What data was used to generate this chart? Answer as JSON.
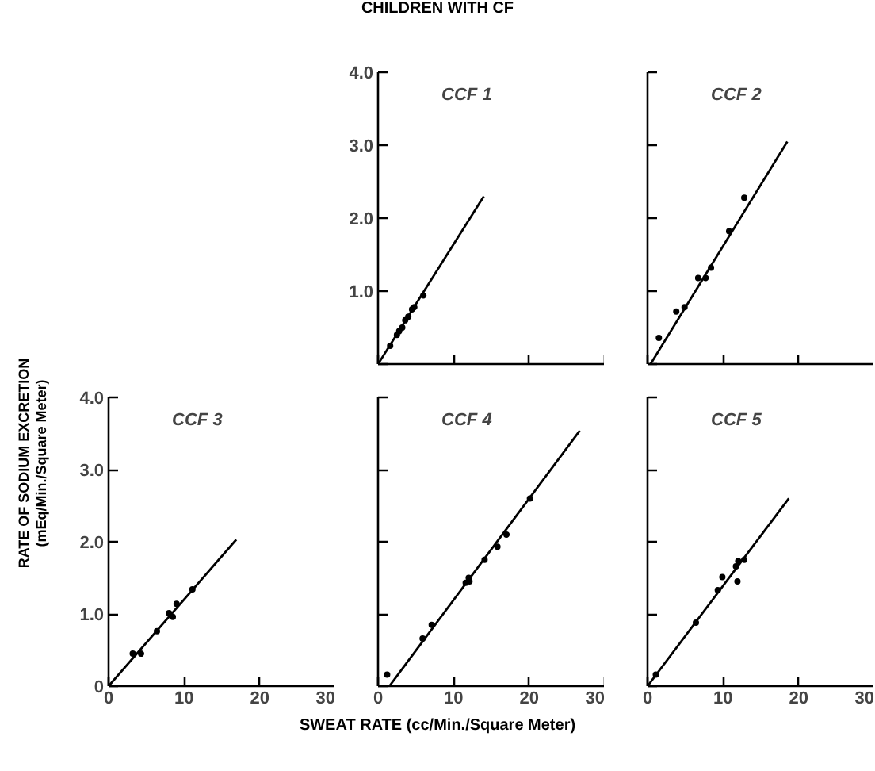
{
  "chart_data": [
    {
      "type": "scatter",
      "title": "CCF 1",
      "annotations": [
        "CHILDREN WITH CF"
      ],
      "xlim": [
        0,
        30
      ],
      "ylim": [
        0,
        4
      ],
      "tick_labels": "y",
      "xticks": [
        {
          "value": 0,
          "label": null
        },
        {
          "value": 10,
          "label": null
        },
        {
          "value": 20,
          "label": null
        },
        {
          "value": 30,
          "label": null
        }
      ],
      "yticks": [
        {
          "value": 0,
          "label": null
        },
        {
          "value": 1,
          "label": "1.0"
        },
        {
          "value": 2,
          "label": "2.0"
        },
        {
          "value": 3,
          "label": "3.0"
        },
        {
          "value": 4,
          "label": "4.0"
        }
      ],
      "series": [
        {
          "type": "scatter",
          "marker": "circle",
          "color": "#000000",
          "x": [
            1.6,
            2.5,
            2.8,
            3.2,
            3.6,
            4.0,
            4.5,
            4.8,
            6.0
          ],
          "values": [
            0.25,
            0.4,
            0.45,
            0.5,
            0.6,
            0.65,
            0.75,
            0.78,
            0.94
          ]
        },
        {
          "type": "line",
          "color": "#000000",
          "x": [
            0,
            14.0
          ],
          "values": [
            0,
            2.3
          ]
        }
      ]
    },
    {
      "type": "scatter",
      "title": "CCF 2",
      "xlim": [
        0,
        30
      ],
      "ylim": [
        0,
        4
      ],
      "tick_labels": false,
      "xticks": [
        {
          "value": 0,
          "label": null
        },
        {
          "value": 10,
          "label": null
        },
        {
          "value": 20,
          "label": null
        },
        {
          "value": 30,
          "label": null
        }
      ],
      "yticks": [
        {
          "value": 0,
          "label": null
        },
        {
          "value": 1,
          "label": null
        },
        {
          "value": 2,
          "label": null
        },
        {
          "value": 3,
          "label": null
        },
        {
          "value": 4,
          "label": null
        }
      ],
      "series": [
        {
          "type": "scatter",
          "marker": "circle",
          "color": "#000000",
          "x": [
            1.5,
            3.8,
            4.9,
            6.7,
            7.7,
            8.4,
            10.8,
            12.8
          ],
          "values": [
            0.36,
            0.72,
            0.78,
            1.18,
            1.18,
            1.32,
            1.82,
            2.28
          ]
        },
        {
          "type": "line",
          "color": "#000000",
          "x": [
            0.4,
            18.5
          ],
          "values": [
            0,
            3.05
          ]
        }
      ]
    },
    {
      "type": "scatter",
      "title": "CCF 3",
      "ylabel": "RATE OF SODIUM EXCRETION\n(mEq/Min./Square Meter)",
      "xlim": [
        0,
        30
      ],
      "ylim": [
        0,
        4
      ],
      "xticks": [
        0,
        10,
        20,
        30
      ],
      "yticks": [
        0,
        {
          "value": 1,
          "label": "1.0"
        },
        {
          "value": 2,
          "label": "2.0"
        },
        {
          "value": 3,
          "label": "3.0"
        },
        {
          "value": 4,
          "label": "4.0"
        }
      ],
      "series": [
        {
          "type": "scatter",
          "marker": "circle",
          "color": "#000000",
          "x": [
            3.2,
            4.3,
            6.4,
            8.0,
            8.5,
            9.0,
            11.1
          ],
          "values": [
            0.45,
            0.45,
            0.76,
            1.01,
            0.96,
            1.14,
            1.34
          ]
        },
        {
          "type": "line",
          "color": "#000000",
          "x": [
            0,
            16.9
          ],
          "values": [
            0,
            2.03
          ]
        }
      ]
    },
    {
      "type": "scatter",
      "title": "CCF 4",
      "xlabel": "SWEAT RATE (cc/Min./Square Meter)",
      "xlim": [
        0,
        30
      ],
      "ylim": [
        0,
        4
      ],
      "tick_labels": "x",
      "xticks": [
        0,
        10,
        20,
        30
      ],
      "yticks": [
        {
          "value": 0,
          "label": null
        },
        {
          "value": 1,
          "label": null
        },
        {
          "value": 2,
          "label": null
        },
        {
          "value": 3,
          "label": null
        },
        {
          "value": 4,
          "label": null
        }
      ],
      "series": [
        {
          "type": "scatter",
          "marker": "circle",
          "color": "#000000",
          "x": [
            1.2,
            5.9,
            7.1,
            11.6,
            12.0,
            12.1,
            14.1,
            15.8,
            17.0,
            20.1
          ],
          "values": [
            0.16,
            0.66,
            0.85,
            1.43,
            1.5,
            1.45,
            1.75,
            1.93,
            2.1,
            2.6
          ]
        },
        {
          "type": "line",
          "color": "#000000",
          "x": [
            1.5,
            26.7
          ],
          "values": [
            0,
            3.54
          ]
        }
      ]
    },
    {
      "type": "scatter",
      "title": "CCF 5",
      "xlim": [
        0,
        30
      ],
      "ylim": [
        0,
        4
      ],
      "tick_labels": "x",
      "xticks": [
        0,
        10,
        20,
        30
      ],
      "yticks": [
        {
          "value": 0,
          "label": null
        },
        {
          "value": 1,
          "label": null
        },
        {
          "value": 2,
          "label": null
        },
        {
          "value": 3,
          "label": null
        },
        {
          "value": 4,
          "label": null
        }
      ],
      "series": [
        {
          "type": "scatter",
          "marker": "circle",
          "color": "#000000",
          "x": [
            1.1,
            6.4,
            9.3,
            9.9,
            11.7,
            11.9,
            12.0,
            12.8
          ],
          "values": [
            0.16,
            0.88,
            1.33,
            1.51,
            1.66,
            1.45,
            1.73,
            1.75
          ]
        },
        {
          "type": "line",
          "color": "#000000",
          "x": [
            0,
            18.7
          ],
          "values": [
            0,
            2.6
          ]
        }
      ]
    }
  ]
}
